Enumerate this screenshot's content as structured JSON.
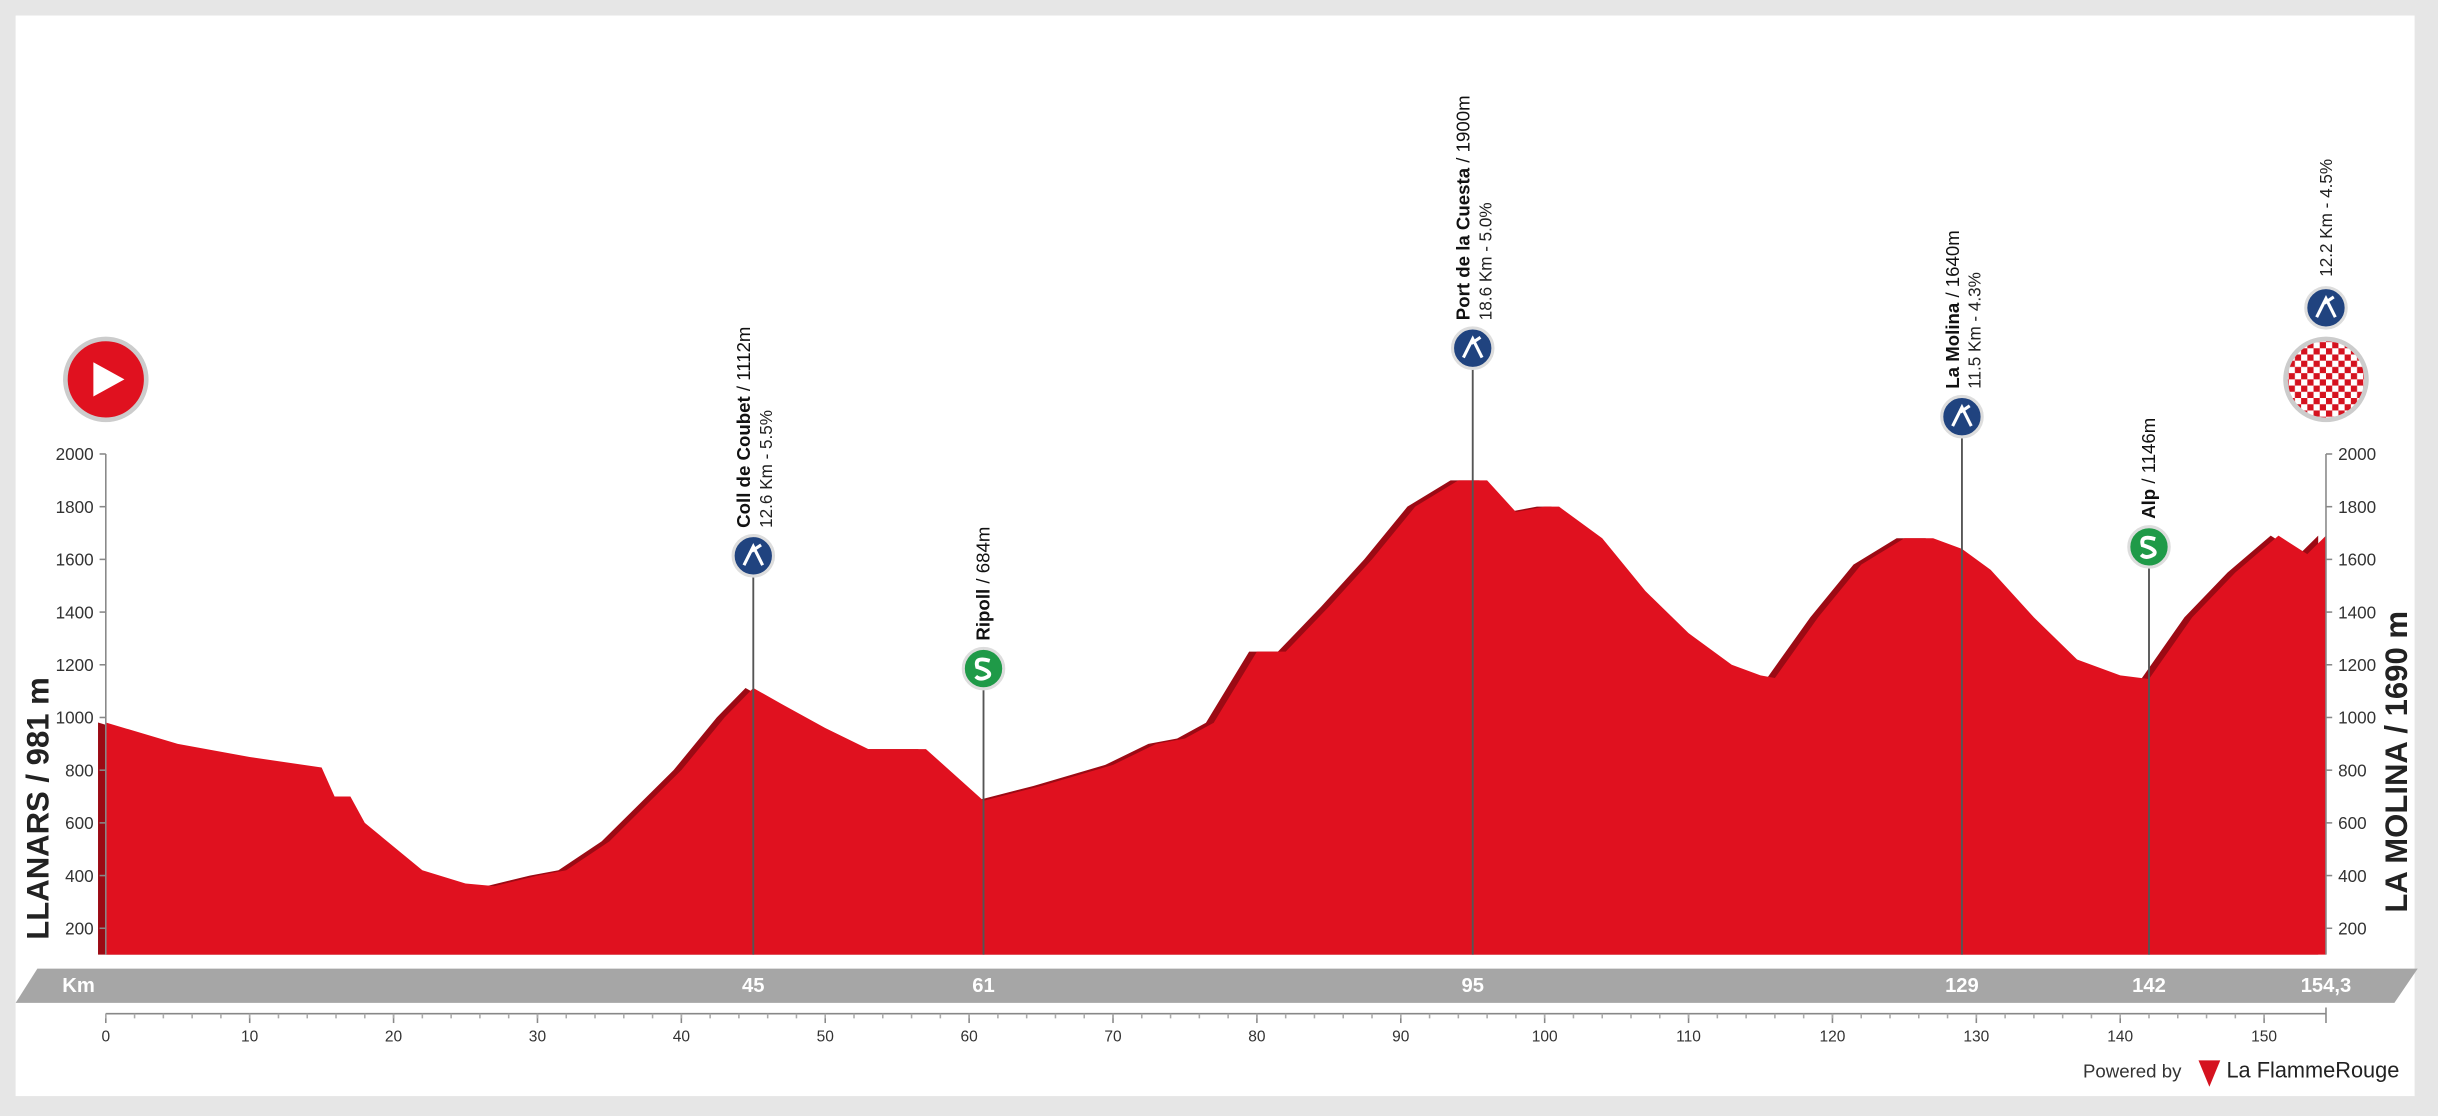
{
  "chart_data": {
    "type": "area",
    "start_label": "LLANARS / 981 m",
    "finish_label": "LA MOLINA / 1690 m",
    "x_label": "Km",
    "color": "#e0111f",
    "x": [
      0,
      5,
      10,
      15,
      15.9,
      17,
      18,
      22,
      25,
      27,
      30,
      32,
      35,
      40,
      43,
      45,
      47,
      50,
      53,
      57,
      61,
      65,
      70,
      73,
      75,
      77,
      80,
      82,
      85,
      88,
      91,
      94,
      96,
      98,
      100,
      101,
      104,
      107,
      110,
      113,
      115,
      116,
      119,
      122,
      125,
      127,
      129,
      131,
      134,
      137,
      140,
      142,
      145,
      148,
      151,
      153,
      154.3
    ],
    "values": [
      981,
      900,
      850,
      810,
      700,
      700,
      600,
      420,
      370,
      360,
      400,
      420,
      530,
      800,
      1000,
      1112,
      1050,
      960,
      880,
      880,
      684,
      740,
      820,
      900,
      920,
      980,
      1250,
      1250,
      1420,
      1600,
      1800,
      1900,
      1900,
      1780,
      1800,
      1800,
      1680,
      1480,
      1320,
      1200,
      1160,
      1150,
      1380,
      1580,
      1680,
      1680,
      1640,
      1560,
      1380,
      1220,
      1160,
      1146,
      1380,
      1550,
      1690,
      1620,
      1690
    ],
    "xlim": [
      0,
      154.3
    ],
    "xticks": [
      0,
      10,
      20,
      30,
      40,
      50,
      60,
      70,
      80,
      90,
      100,
      110,
      120,
      130,
      140,
      150
    ],
    "ylim": [
      100,
      2000
    ],
    "yticks": [
      200,
      400,
      600,
      800,
      1000,
      1200,
      1400,
      1600,
      1800,
      2000
    ],
    "km_marks": [
      45,
      61,
      95,
      129,
      142,
      {
        "value": 154.3,
        "label": "154,3"
      }
    ],
    "points": [
      {
        "kind": "start",
        "km": 0
      },
      {
        "kind": "climb",
        "km": 45,
        "name": "Coll de Coubet",
        "elevation": "/ 1112m",
        "detail": "12.6 Km - 5.5%"
      },
      {
        "kind": "sprint",
        "km": 61,
        "name": "Ripoll",
        "elevation": "/ 684m"
      },
      {
        "kind": "special",
        "km": 95,
        "name": "Port de la Cuesta",
        "elevation": "/ 1900m",
        "detail": "18.6 Km - 5.0%"
      },
      {
        "kind": "climb",
        "km": 129,
        "name": "La Molina",
        "elevation": "/ 1640m",
        "detail": "11.5 Km - 4.3%"
      },
      {
        "kind": "sprint",
        "km": 142,
        "name": "Alp",
        "elevation": "/ 1146m"
      },
      {
        "kind": "finish",
        "km": 154.3,
        "detail": "12.2 Km - 4.5%"
      }
    ],
    "footer": {
      "powered": "Powered by",
      "brand": "La FlammeRouge"
    }
  }
}
